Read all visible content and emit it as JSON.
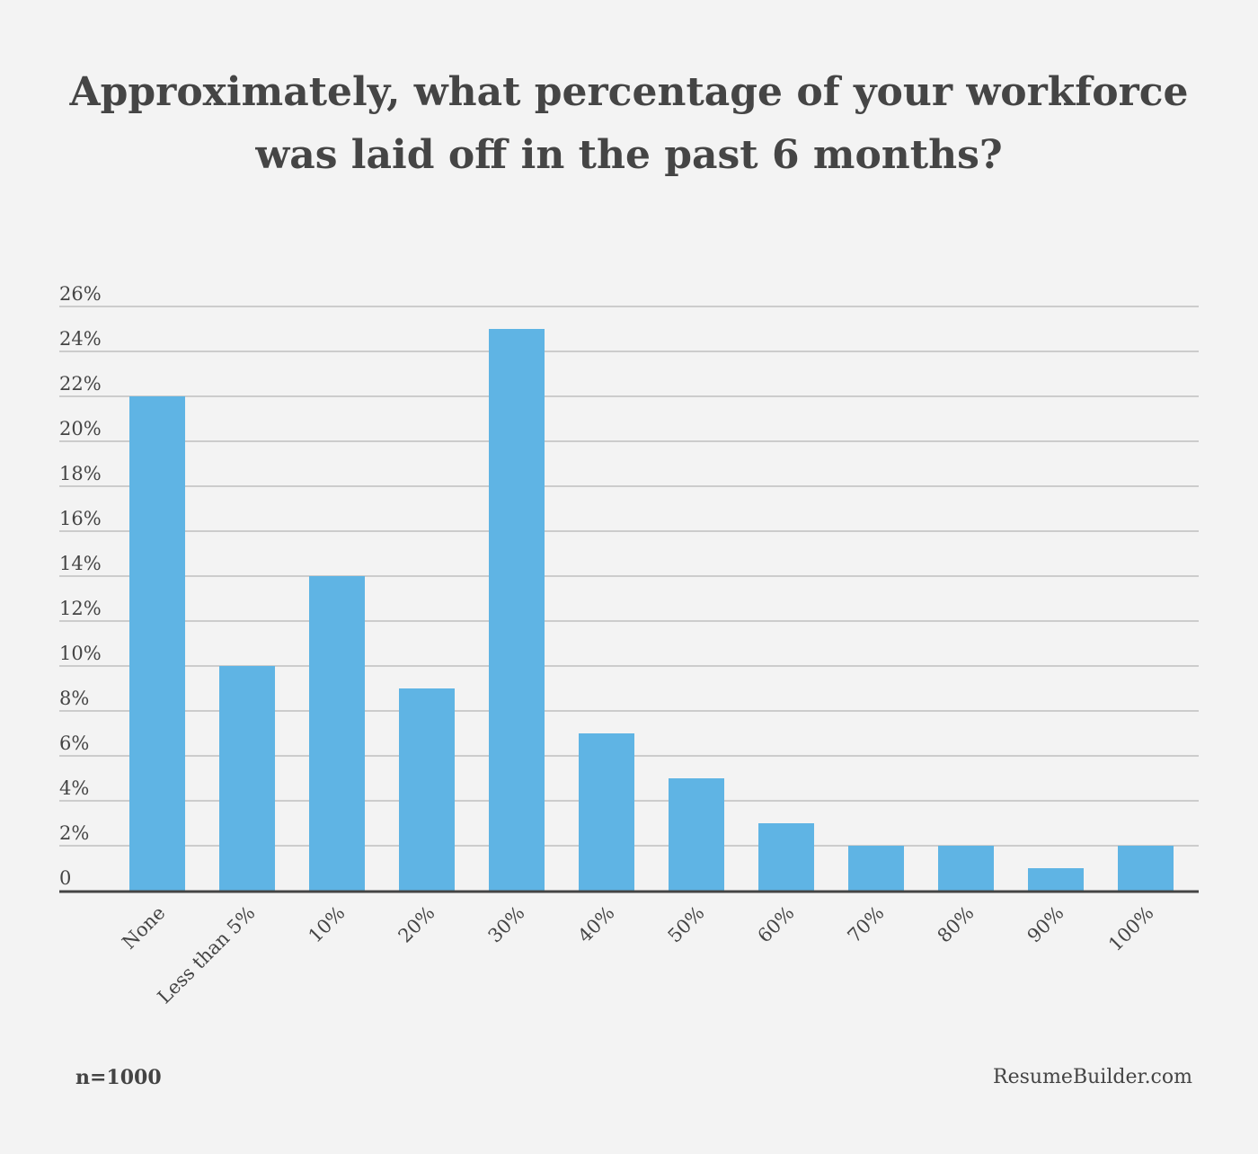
{
  "chart_data": {
    "type": "bar",
    "title_lines": [
      "Approximately, what percentage of your workforce",
      "was laid off in the past 6 months?"
    ],
    "categories": [
      "None",
      "Less than 5%",
      "10%",
      "20%",
      "30%",
      "40%",
      "50%",
      "60%",
      "70%",
      "80%",
      "90%",
      "100%"
    ],
    "values": [
      22,
      10,
      14,
      9,
      25,
      7,
      5,
      3,
      2,
      2,
      1,
      2
    ],
    "unit": "%",
    "ylim": [
      0,
      26
    ],
    "yticks": [
      "0",
      "2%",
      "4%",
      "6%",
      "8%",
      "10%",
      "12%",
      "14%",
      "16%",
      "18%",
      "20%",
      "22%",
      "24%",
      "26%"
    ],
    "ytick_values": [
      0,
      2,
      4,
      6,
      8,
      10,
      12,
      14,
      16,
      18,
      20,
      22,
      24,
      26
    ],
    "grid": true,
    "bar_color": "#5fb4e4",
    "gridline_color": "#cccccc",
    "axis_color": "#444444"
  },
  "footer": {
    "sample": "n=1000",
    "source": "ResumeBuilder.com"
  }
}
